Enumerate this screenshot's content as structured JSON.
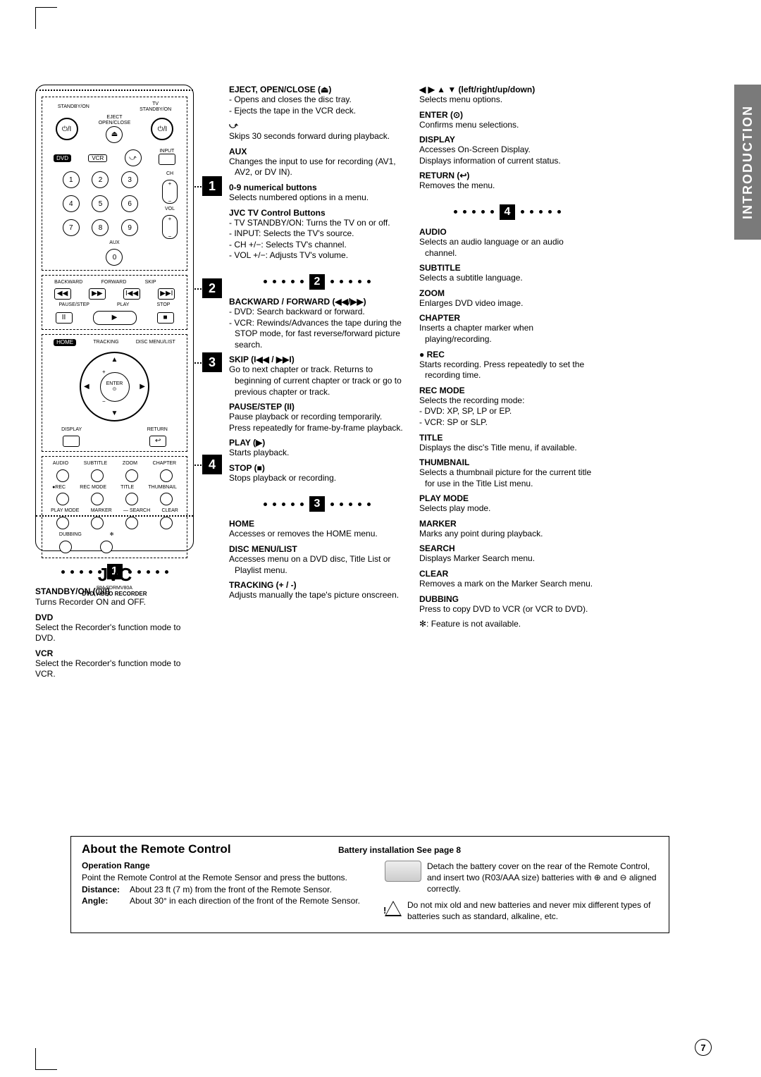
{
  "page_number": "7",
  "tab_label": "INTRODUCTION",
  "title": "Remote Control",
  "remote": {
    "brand": "JVC",
    "model": "RM-SDRMV80A",
    "subtitle": "DVD VIDEO RECORDER"
  },
  "callouts": [
    "1",
    "2",
    "3",
    "4"
  ],
  "sections": {
    "s1": {
      "header": "1",
      "items": [
        {
          "t": "STANDBY/ON (⏻/I)",
          "d": "Turns Recorder ON and OFF."
        },
        {
          "t": "DVD",
          "d": "Select the Recorder's function mode to DVD."
        },
        {
          "t": "VCR",
          "d": "Select the Recorder's function mode to VCR."
        }
      ]
    },
    "col_a": [
      {
        "t": "EJECT, OPEN/CLOSE (⏏)",
        "d": [
          "- Opens and closes the disc tray.",
          "- Ejects the tape in the VCR deck."
        ]
      },
      {
        "t": "⤻",
        "d": [
          "Skips 30 seconds forward during playback."
        ]
      },
      {
        "t": "AUX",
        "d": [
          "Changes the input to use for recording (AV1, AV2, or DV IN)."
        ]
      },
      {
        "t": "0-9 numerical buttons",
        "d": [
          "Selects numbered options in a menu."
        ]
      },
      {
        "t": "JVC TV Control Buttons",
        "d": [
          "- TV STANDBY/ON: Turns the TV on or off.",
          "- INPUT: Selects the TV's source.",
          "- CH +/−: Selects TV's channel.",
          "- VOL +/−: Adjusts TV's volume."
        ]
      }
    ],
    "s2": {
      "header": "2",
      "items": [
        {
          "t": "BACKWARD / FORWARD (◀◀/▶▶)",
          "d": [
            "- DVD: Search backward or forward.",
            "- VCR: Rewinds/Advances the tape during the STOP mode, for fast reverse/forward picture search."
          ]
        },
        {
          "t": "SKIP (I◀◀ / ▶▶I)",
          "d": [
            "Go to next chapter or track. Returns to beginning of current chapter or track or go to previous chapter or track."
          ]
        },
        {
          "t": "PAUSE/STEP (II)",
          "d": [
            "Pause playback or recording temporarily.",
            "Press repeatedly for frame-by-frame playback."
          ]
        },
        {
          "t": "PLAY (▶)",
          "d": [
            "Starts playback."
          ]
        },
        {
          "t": "STOP (■)",
          "d": [
            "Stops playback or recording."
          ]
        }
      ]
    },
    "s3": {
      "header": "3",
      "items": [
        {
          "t": "HOME",
          "d": [
            "Accesses or removes the HOME menu."
          ]
        },
        {
          "t": "DISC MENU/LIST",
          "d": [
            "Accesses menu on a DVD disc, Title List or Playlist menu."
          ]
        },
        {
          "t": "TRACKING (+ / -)",
          "d": [
            "Adjusts manually the tape's picture onscreen."
          ]
        }
      ]
    },
    "col_b_top": [
      {
        "t": "◀ ▶ ▲ ▼ (left/right/up/down)",
        "d": [
          "Selects menu options."
        ]
      },
      {
        "t": "ENTER (⊙)",
        "d": [
          "Confirms menu selections."
        ]
      },
      {
        "t": "DISPLAY",
        "d": [
          "Accesses On-Screen Display.",
          "Displays information of current status."
        ]
      },
      {
        "t": "RETURN (↩)",
        "d": [
          "Removes the menu."
        ]
      }
    ],
    "s4": {
      "header": "4",
      "items": [
        {
          "t": "AUDIO",
          "d": [
            "Selects an audio language or an audio channel."
          ]
        },
        {
          "t": "SUBTITLE",
          "d": [
            "Selects a subtitle language."
          ]
        },
        {
          "t": "ZOOM",
          "d": [
            "Enlarges DVD video image."
          ]
        },
        {
          "t": "CHAPTER",
          "d": [
            "Inserts a chapter marker when playing/recording."
          ]
        },
        {
          "t": "● REC",
          "d": [
            "Starts recording. Press repeatedly to set the recording time."
          ]
        },
        {
          "t": "REC MODE",
          "d": [
            "Selects the recording mode:",
            "- DVD: XP, SP, LP or EP.",
            "- VCR: SP or SLP."
          ]
        },
        {
          "t": "TITLE",
          "d": [
            "Displays the disc's Title menu, if available."
          ]
        },
        {
          "t": "THUMBNAIL",
          "d": [
            "Selects a thumbnail picture for the current title for use in the Title List menu."
          ]
        },
        {
          "t": "PLAY MODE",
          "d": [
            "Selects play mode."
          ]
        },
        {
          "t": "MARKER",
          "d": [
            "Marks any point during playback."
          ]
        },
        {
          "t": "SEARCH",
          "d": [
            "Displays Marker Search menu."
          ]
        },
        {
          "t": "CLEAR",
          "d": [
            "Removes a mark on the Marker Search menu."
          ]
        },
        {
          "t": "DUBBING",
          "d": [
            "Press to copy DVD to VCR (or VCR to DVD)."
          ]
        }
      ],
      "note": "✻: Feature is not available."
    }
  },
  "about": {
    "title": "About the Remote Control",
    "op_h": "Operation Range",
    "op_p": "Point the Remote Control at the Remote Sensor and press the buttons.",
    "distance_l": "Distance:",
    "distance_v": "About 23 ft (7 m) from the front of the Remote Sensor.",
    "angle_l": "Angle:",
    "angle_v": "About 30° in each direction of the front of the Remote Sensor.",
    "batt_h": "Battery installation See page 8",
    "batt_p": "Detach the battery cover on the rear of the Remote Control, and insert two (R03/AAA size) batteries with ⊕ and ⊖ aligned correctly.",
    "warn": "Do not mix old and new batteries and never mix different types of batteries such as standard, alkaline, etc."
  }
}
